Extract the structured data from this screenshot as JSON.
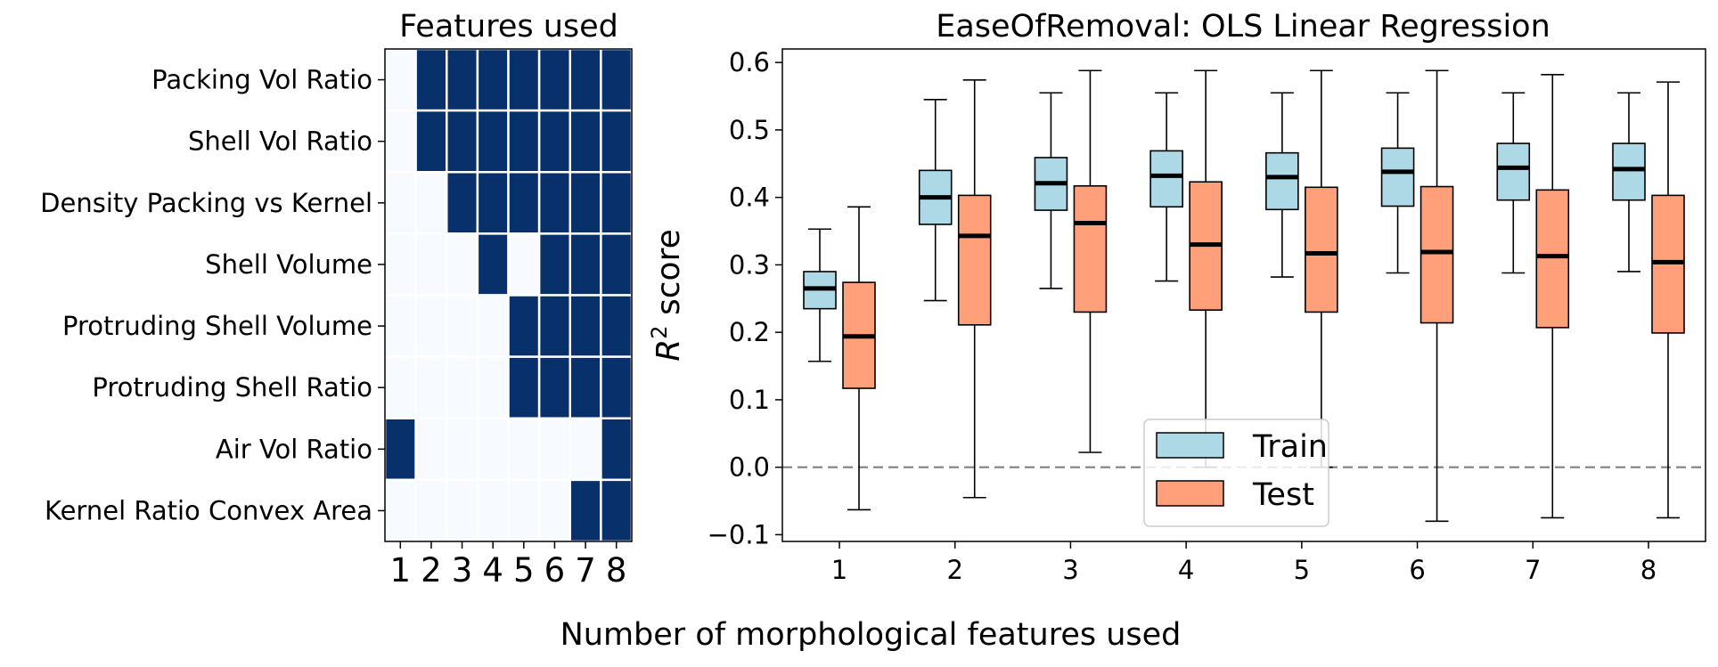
{
  "figure": {
    "xlabel": "Number of morphological features used"
  },
  "chart_data": [
    {
      "type": "heatmap",
      "title": "Features used",
      "x": [
        "1",
        "2",
        "3",
        "4",
        "5",
        "6",
        "7",
        "8"
      ],
      "y": [
        "Packing Vol Ratio",
        "Shell Vol Ratio",
        "Density Packing vs Kernel",
        "Shell Volume",
        "Protruding Shell Volume",
        "Protruding Shell Ratio",
        "Air Vol Ratio",
        "Kernel Ratio Convex Area"
      ],
      "values": [
        [
          0,
          1,
          1,
          1,
          1,
          1,
          1,
          1
        ],
        [
          0,
          1,
          1,
          1,
          1,
          1,
          1,
          1
        ],
        [
          0,
          0,
          1,
          1,
          1,
          1,
          1,
          1
        ],
        [
          0,
          0,
          0,
          1,
          0,
          1,
          1,
          1
        ],
        [
          0,
          0,
          0,
          0,
          1,
          1,
          1,
          1
        ],
        [
          0,
          0,
          0,
          0,
          1,
          1,
          1,
          1
        ],
        [
          1,
          0,
          0,
          0,
          0,
          0,
          0,
          1
        ],
        [
          0,
          0,
          0,
          0,
          0,
          0,
          1,
          1
        ]
      ],
      "colors": {
        "on": "#08306b",
        "off": "#f7fbff"
      }
    },
    {
      "type": "box",
      "title": "EaseOfRemoval: OLS Linear Regression",
      "ylabel_main": "R",
      "ylabel_sup": "2",
      "ylabel_rest": " score",
      "categories": [
        "1",
        "2",
        "3",
        "4",
        "5",
        "6",
        "7",
        "8"
      ],
      "ylim": [
        -0.11,
        0.62
      ],
      "yticks": [
        "−0.1",
        "0.0",
        "0.1",
        "0.2",
        "0.3",
        "0.4",
        "0.5",
        "0.6"
      ],
      "ytick_values": [
        -0.1,
        0.0,
        0.1,
        0.2,
        0.3,
        0.4,
        0.5,
        0.6
      ],
      "reference_line": 0.0,
      "legend_position": "lower-center",
      "series": [
        {
          "name": "Train",
          "color": "#add8e6",
          "boxes": [
            {
              "whislo": 0.157,
              "q1": 0.235,
              "med": 0.265,
              "q3": 0.29,
              "whishi": 0.353
            },
            {
              "whislo": 0.247,
              "q1": 0.36,
              "med": 0.4,
              "q3": 0.44,
              "whishi": 0.545
            },
            {
              "whislo": 0.265,
              "q1": 0.381,
              "med": 0.421,
              "q3": 0.459,
              "whishi": 0.555
            },
            {
              "whislo": 0.276,
              "q1": 0.386,
              "med": 0.432,
              "q3": 0.469,
              "whishi": 0.555
            },
            {
              "whislo": 0.282,
              "q1": 0.382,
              "med": 0.43,
              "q3": 0.466,
              "whishi": 0.555
            },
            {
              "whislo": 0.288,
              "q1": 0.387,
              "med": 0.438,
              "q3": 0.473,
              "whishi": 0.555
            },
            {
              "whislo": 0.288,
              "q1": 0.396,
              "med": 0.444,
              "q3": 0.48,
              "whishi": 0.555
            },
            {
              "whislo": 0.29,
              "q1": 0.396,
              "med": 0.442,
              "q3": 0.48,
              "whishi": 0.555
            }
          ]
        },
        {
          "name": "Test",
          "color": "#ffa07a",
          "boxes": [
            {
              "whislo": -0.063,
              "q1": 0.117,
              "med": 0.194,
              "q3": 0.274,
              "whishi": 0.386
            },
            {
              "whislo": -0.045,
              "q1": 0.211,
              "med": 0.343,
              "q3": 0.403,
              "whishi": 0.574
            },
            {
              "whislo": 0.022,
              "q1": 0.23,
              "med": 0.362,
              "q3": 0.417,
              "whishi": 0.588
            },
            {
              "whislo": 0.0,
              "q1": 0.233,
              "med": 0.33,
              "q3": 0.423,
              "whishi": 0.588
            },
            {
              "whislo": 0.0,
              "q1": 0.23,
              "med": 0.317,
              "q3": 0.415,
              "whishi": 0.588
            },
            {
              "whislo": -0.08,
              "q1": 0.214,
              "med": 0.319,
              "q3": 0.416,
              "whishi": 0.588
            },
            {
              "whislo": -0.075,
              "q1": 0.207,
              "med": 0.313,
              "q3": 0.411,
              "whishi": 0.582
            },
            {
              "whislo": -0.075,
              "q1": 0.199,
              "med": 0.304,
              "q3": 0.403,
              "whishi": 0.571
            }
          ]
        }
      ]
    }
  ]
}
